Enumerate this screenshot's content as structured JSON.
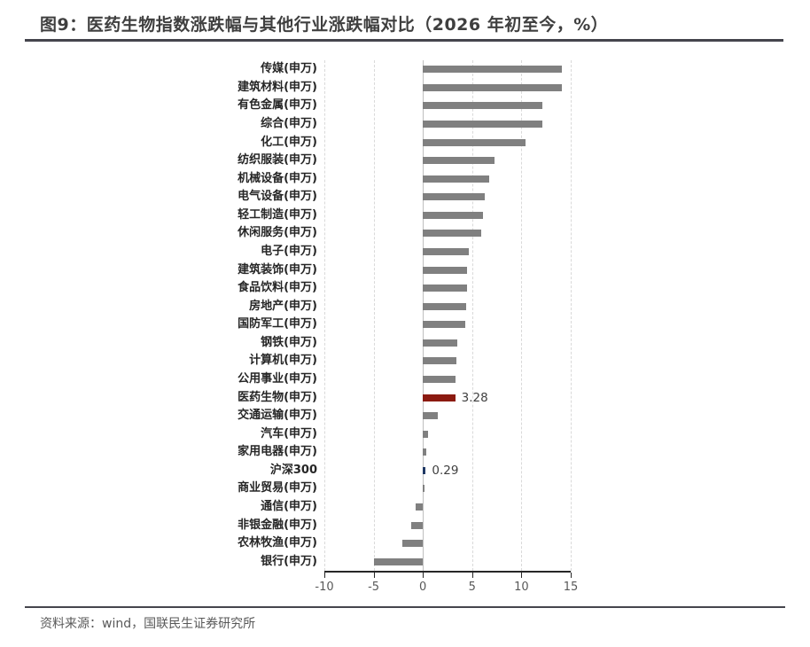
{
  "title": "图9：医药生物指数涨跌幅与其他行业涨跌幅对比（2026 年初至今，%）",
  "footer": {
    "source": "资料来源：wind，国联民生证券研究所"
  },
  "colors": {
    "bar_default": "#808080",
    "bar_highlight": "#8b1a10",
    "bar_index": "#1f3864",
    "title_text": "#3f3f3f",
    "rule": "#45454d",
    "axis": "#262626",
    "gridline": "#d9d9d9",
    "zero_line": "#bfbfbf",
    "tick_label": "#595959",
    "category_label": "#262626"
  },
  "chart_data": {
    "type": "bar",
    "orientation": "horizontal",
    "title": "图9：医药生物指数涨跌幅与其他行业涨跌幅对比（2026 年初至今，%）",
    "xlabel": "",
    "ylabel": "",
    "xlim": [
      -10,
      15
    ],
    "xticks": [
      -10,
      -5,
      0,
      5,
      10,
      15
    ],
    "grid": "vertical-dashed",
    "legend": "none",
    "categories": [
      "传媒(申万)",
      "建筑材料(申万)",
      "有色金属(申万)",
      "综合(申万)",
      "化工(申万)",
      "纺织服装(申万)",
      "机械设备(申万)",
      "电气设备(申万)",
      "轻工制造(申万)",
      "休闲服务(申万)",
      "电子(申万)",
      "建筑装饰(申万)",
      "食品饮料(申万)",
      "房地产(申万)",
      "国防军工(申万)",
      "钢铁(申万)",
      "计算机(申万)",
      "公用事业(申万)",
      "医药生物(申万)",
      "交通运输(申万)",
      "汽车(申万)",
      "家用电器(申万)",
      "沪深300",
      "商业贸易(申万)",
      "通信(申万)",
      "非银金融(申万)",
      "农林牧渔(申万)",
      "银行(申万)"
    ],
    "values": [
      14.1,
      14.1,
      12.1,
      12.1,
      10.4,
      7.3,
      6.7,
      6.3,
      6.1,
      5.9,
      4.7,
      4.5,
      4.5,
      4.4,
      4.3,
      3.5,
      3.4,
      3.3,
      3.28,
      1.5,
      0.5,
      0.3,
      0.29,
      0.1,
      -0.7,
      -1.2,
      -2.1,
      -5.0
    ],
    "bar_color_keys": {
      "医药生物(申万)": "bar_highlight",
      "沪深300": "bar_index"
    },
    "value_labels": {
      "医药生物(申万)": "3.28",
      "沪深300": "0.29"
    }
  }
}
